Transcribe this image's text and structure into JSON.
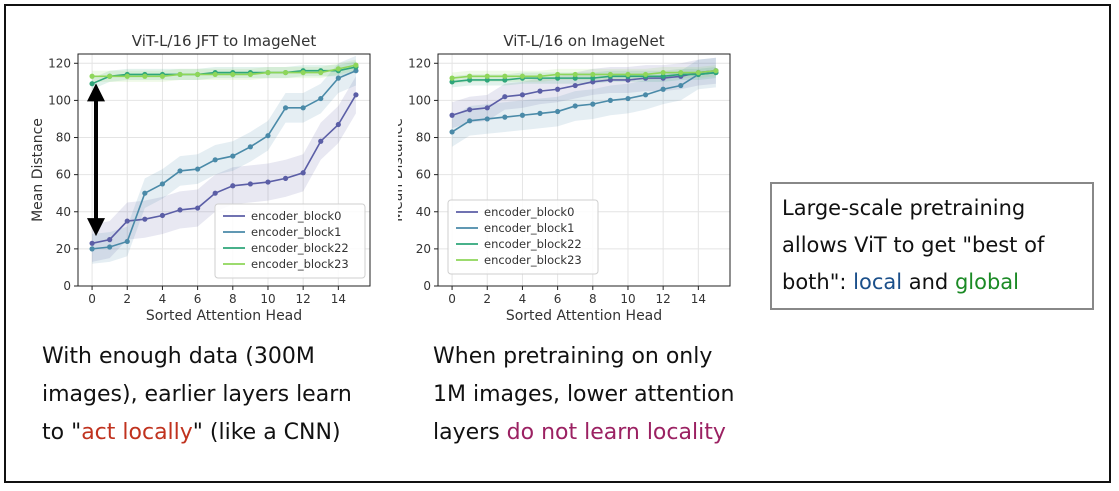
{
  "chart_data": [
    {
      "type": "line",
      "title": "ViT-L/16 JFT to ImageNet",
      "xlabel": "Sorted Attention Head",
      "ylabel": "Mean Distance",
      "xlim": [
        -0.8,
        15.8
      ],
      "ylim": [
        0,
        125
      ],
      "xticks": [
        0,
        2,
        4,
        6,
        8,
        10,
        12,
        14
      ],
      "yticks": [
        0,
        20,
        40,
        60,
        80,
        100,
        120
      ],
      "x": [
        0,
        1,
        2,
        3,
        4,
        5,
        6,
        7,
        8,
        9,
        10,
        11,
        12,
        13,
        14,
        15
      ],
      "grid": true,
      "legend_position": "bottom-right",
      "series": [
        {
          "name": "encoder_block0",
          "color": "#5b5ea6",
          "values": [
            23,
            25,
            35,
            36,
            38,
            41,
            42,
            50,
            54,
            55,
            56,
            58,
            61,
            78,
            87,
            103
          ],
          "band": 10
        },
        {
          "name": "encoder_block1",
          "color": "#4a8aa8",
          "values": [
            20,
            21,
            24,
            50,
            55,
            62,
            63,
            68,
            70,
            75,
            81,
            96,
            96,
            101,
            112,
            116
          ],
          "band": 8
        },
        {
          "name": "encoder_block22",
          "color": "#2ea67a",
          "values": [
            109,
            113,
            114,
            114,
            114,
            114,
            114,
            115,
            115,
            115,
            115,
            115,
            116,
            116,
            116,
            118
          ],
          "band": 3
        },
        {
          "name": "encoder_block23",
          "color": "#8ed65a",
          "values": [
            113,
            113,
            113,
            113,
            113,
            114,
            114,
            114,
            114,
            114,
            115,
            115,
            115,
            115,
            117,
            119
          ],
          "band": 3
        }
      ]
    },
    {
      "type": "line",
      "title": "ViT-L/16 on ImageNet",
      "xlabel": "Sorted Attention Head",
      "ylabel": "Mean Distance",
      "xlim": [
        -0.8,
        15.8
      ],
      "ylim": [
        0,
        125
      ],
      "xticks": [
        0,
        2,
        4,
        6,
        8,
        10,
        12,
        14
      ],
      "yticks": [
        0,
        20,
        40,
        60,
        80,
        100,
        120
      ],
      "x": [
        0,
        1,
        2,
        3,
        4,
        5,
        6,
        7,
        8,
        9,
        10,
        11,
        12,
        13,
        14,
        15
      ],
      "grid": true,
      "legend_position": "bottom-left",
      "series": [
        {
          "name": "encoder_block0",
          "color": "#5b5ea6",
          "values": [
            92,
            95,
            96,
            102,
            103,
            105,
            106,
            108,
            110,
            111,
            111,
            112,
            112,
            113,
            115,
            116
          ],
          "band": 7
        },
        {
          "name": "encoder_block1",
          "color": "#4a8aa8",
          "values": [
            83,
            89,
            90,
            91,
            92,
            93,
            94,
            97,
            98,
            100,
            101,
            103,
            106,
            108,
            114,
            115
          ],
          "band": 8
        },
        {
          "name": "encoder_block22",
          "color": "#2ea67a",
          "values": [
            110,
            111,
            111,
            111,
            112,
            112,
            112,
            112,
            112,
            113,
            113,
            113,
            113,
            114,
            114,
            115
          ],
          "band": 3
        },
        {
          "name": "encoder_block23",
          "color": "#8ed65a",
          "values": [
            112,
            113,
            113,
            113,
            113,
            113,
            114,
            114,
            114,
            114,
            114,
            114,
            115,
            115,
            115,
            116
          ],
          "band": 3
        }
      ]
    }
  ],
  "captions": {
    "left": {
      "line1": "With enough data (300M",
      "line2": "images), earlier layers learn",
      "line3_pre": "to \"",
      "line3_highlight": "act locally",
      "line3_post": "\" (like a CNN)"
    },
    "middle": {
      "line1": "When pretraining on only",
      "line2": "1M images, lower attention",
      "line3_pre": "layers ",
      "line3_highlight": "do not learn locality"
    }
  },
  "callout": {
    "line1": "Large-scale pretraining",
    "line2": "allows ViT to get \"best of",
    "line3_pre": "both\": ",
    "local": "local",
    "and": " and ",
    "global": "global"
  },
  "colors": {
    "red": "#c0321e",
    "purple": "#9b2162",
    "local": "#1a4f8a",
    "global": "#1b8a25",
    "arrow": "#000000"
  }
}
